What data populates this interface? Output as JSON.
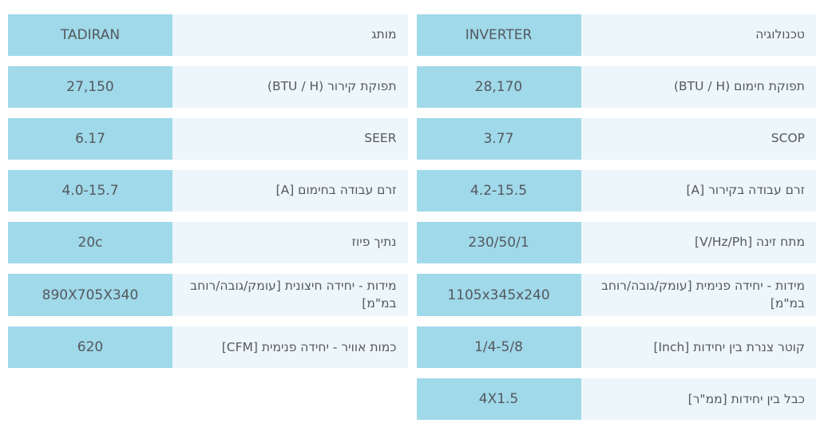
{
  "colors": {
    "value_cell_bg": "#a0d9e9",
    "label_cell_bg": "#edf6fa",
    "text": "#55595f",
    "page_bg": "#ffffff"
  },
  "spec_table": {
    "right_column": [
      {
        "label": "טכנולוגיה",
        "value": "INVERTER"
      },
      {
        "label": "תפוקת חימום (BTU / H)",
        "value": "28,170"
      },
      {
        "label": "SCOP",
        "value": "3.77"
      },
      {
        "label": "זרם עבודה בקירור [A]",
        "value": "4.2-15.5"
      },
      {
        "label": "מתח זינה [V/Hz/Ph]",
        "value": "230/50/1"
      },
      {
        "label": "מידות - יחידה פנימית [עומק/גובה/רוחב במ\"מ]",
        "value": "1105x345x240"
      },
      {
        "label": "קוטר צנרת בין יחידות [Inch]",
        "value": "1/4-5/8"
      },
      {
        "label": "כבל בין יחידות [ממ\"ר]",
        "value": "4X1.5"
      }
    ],
    "left_column": [
      {
        "label": "מותג",
        "value": "TADIRAN"
      },
      {
        "label": "תפוקת קירור (BTU / H)",
        "value": "27,150"
      },
      {
        "label": "SEER",
        "value": "6.17"
      },
      {
        "label": "זרם עבודה בחימום [A]",
        "value": "4.0-15.7"
      },
      {
        "label": "נתיך פיוז",
        "value": "20c"
      },
      {
        "label": "מידות - יחידה חיצונית [עומק/גובה/רוחב במ\"מ]",
        "value": "890X705X340"
      },
      {
        "label": "כמות אוויר - יחידה פנימית [CFM]",
        "value": "620"
      }
    ]
  }
}
